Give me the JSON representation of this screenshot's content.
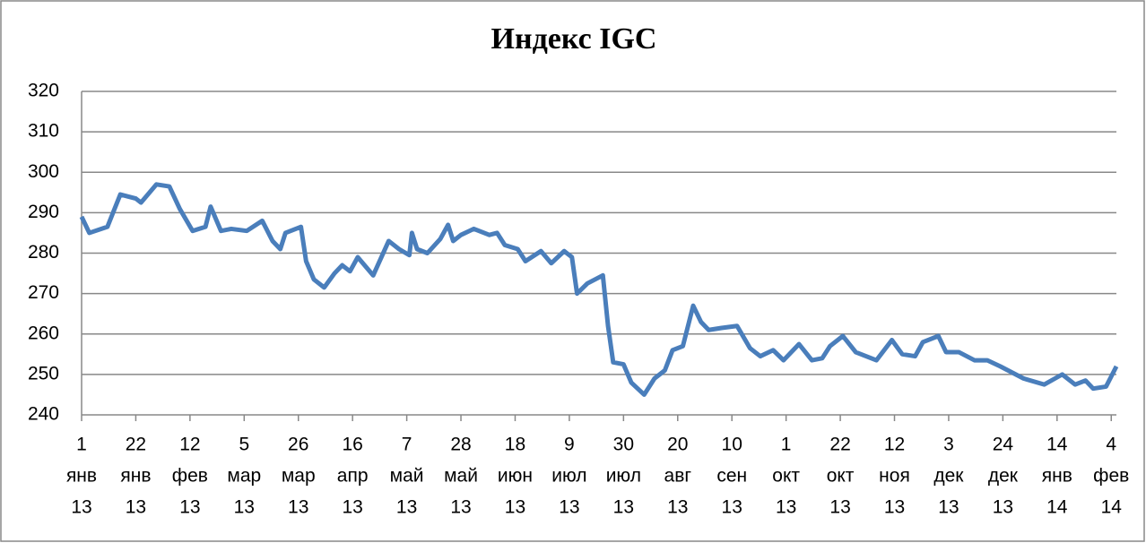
{
  "chart_data": {
    "type": "line",
    "title": "Индекс IGC",
    "color": "#4a7ebb",
    "grid": true,
    "x": [
      "2013-01-01",
      "2013-01-04",
      "2013-01-11",
      "2013-01-16",
      "2013-01-22",
      "2013-01-24",
      "2013-01-30",
      "2013-02-04",
      "2013-02-08",
      "2013-02-13",
      "2013-02-18",
      "2013-02-20",
      "2013-02-24",
      "2013-02-28",
      "2013-03-06",
      "2013-03-12",
      "2013-03-16",
      "2013-03-19",
      "2013-03-21",
      "2013-03-27",
      "2013-03-29",
      "2013-04-01",
      "2013-04-05",
      "2013-04-09",
      "2013-04-12",
      "2013-04-15",
      "2013-04-18",
      "2013-04-24",
      "2013-04-30",
      "2013-05-04",
      "2013-05-08",
      "2013-05-09",
      "2013-05-11",
      "2013-05-15",
      "2013-05-20",
      "2013-05-23",
      "2013-05-25",
      "2013-05-28",
      "2013-06-02",
      "2013-06-08",
      "2013-06-11",
      "2013-06-14",
      "2013-06-19",
      "2013-06-22",
      "2013-06-28",
      "2013-07-02",
      "2013-07-07",
      "2013-07-10",
      "2013-07-12",
      "2013-07-16",
      "2013-07-22",
      "2013-07-24",
      "2013-07-26",
      "2013-07-30",
      "2013-08-02",
      "2013-08-07",
      "2013-08-11",
      "2013-08-15",
      "2013-08-18",
      "2013-08-22",
      "2013-08-26",
      "2013-08-29",
      "2013-09-01",
      "2013-09-06",
      "2013-09-12",
      "2013-09-17",
      "2013-09-21",
      "2013-09-26",
      "2013-09-30",
      "2013-10-06",
      "2013-10-11",
      "2013-10-15",
      "2013-10-18",
      "2013-10-23",
      "2013-10-28",
      "2013-11-01",
      "2013-11-05",
      "2013-11-11",
      "2013-11-15",
      "2013-11-20",
      "2013-11-23",
      "2013-11-29",
      "2013-12-02",
      "2013-12-07",
      "2013-12-13",
      "2013-12-18",
      "2013-12-23",
      "2014-01-01",
      "2014-01-09",
      "2014-01-16",
      "2014-01-21",
      "2014-01-25",
      "2014-01-28",
      "2014-02-02",
      "2014-02-06"
    ],
    "values": [
      289,
      285,
      286.5,
      294.5,
      293.5,
      292.5,
      297,
      296.5,
      291,
      285.5,
      286.5,
      291.5,
      285.5,
      286,
      285.5,
      288,
      283,
      281,
      285,
      286.5,
      278,
      273.5,
      271.5,
      275,
      277,
      275.5,
      279,
      274.5,
      283,
      281,
      279.5,
      285,
      281,
      280,
      283.5,
      287,
      283,
      284.5,
      286,
      284.5,
      285,
      282,
      281,
      278,
      280.5,
      277.5,
      280.5,
      279,
      270,
      272.5,
      274.5,
      262,
      253,
      252.5,
      248,
      245,
      249,
      251,
      256,
      257,
      267,
      263,
      261,
      261.5,
      262,
      256.5,
      254.5,
      256,
      253.5,
      257.5,
      253.5,
      254,
      257,
      259.5,
      255.5,
      254.5,
      253.5,
      258.5,
      255,
      254.5,
      258,
      259.5,
      255.5,
      255.5,
      253.5,
      253.5,
      252,
      249,
      247.5,
      250,
      247.5,
      248.5,
      246.5,
      247,
      252
    ],
    "xlim": [
      "2013-01-01",
      "2014-02-06"
    ],
    "xticks": [
      {
        "value": "2013-01-01",
        "label": [
          "1",
          "янв",
          "13"
        ]
      },
      {
        "value": "2013-01-22",
        "label": [
          "22",
          "янв",
          "13"
        ]
      },
      {
        "value": "2013-02-12",
        "label": [
          "12",
          "фев",
          "13"
        ]
      },
      {
        "value": "2013-03-05",
        "label": [
          "5",
          "мар",
          "13"
        ]
      },
      {
        "value": "2013-03-26",
        "label": [
          "26",
          "мар",
          "13"
        ]
      },
      {
        "value": "2013-04-16",
        "label": [
          "16",
          "апр",
          "13"
        ]
      },
      {
        "value": "2013-05-07",
        "label": [
          "7",
          "май",
          "13"
        ]
      },
      {
        "value": "2013-05-28",
        "label": [
          "28",
          "май",
          "13"
        ]
      },
      {
        "value": "2013-06-18",
        "label": [
          "18",
          "июн",
          "13"
        ]
      },
      {
        "value": "2013-07-09",
        "label": [
          "9",
          "июл",
          "13"
        ]
      },
      {
        "value": "2013-07-30",
        "label": [
          "30",
          "июл",
          "13"
        ]
      },
      {
        "value": "2013-08-20",
        "label": [
          "20",
          "авг",
          "13"
        ]
      },
      {
        "value": "2013-09-10",
        "label": [
          "10",
          "сен",
          "13"
        ]
      },
      {
        "value": "2013-10-01",
        "label": [
          "1",
          "окт",
          "13"
        ]
      },
      {
        "value": "2013-10-22",
        "label": [
          "22",
          "окт",
          "13"
        ]
      },
      {
        "value": "2013-11-12",
        "label": [
          "12",
          "ноя",
          "13"
        ]
      },
      {
        "value": "2013-12-03",
        "label": [
          "3",
          "дек",
          "13"
        ]
      },
      {
        "value": "2013-12-24",
        "label": [
          "24",
          "дек",
          "13"
        ]
      },
      {
        "value": "2014-01-14",
        "label": [
          "14",
          "янв",
          "14"
        ]
      },
      {
        "value": "2014-02-04",
        "label": [
          "4",
          "фев",
          "14"
        ]
      }
    ],
    "ylim": [
      240,
      320
    ],
    "yticks": [
      240,
      250,
      260,
      270,
      280,
      290,
      300,
      310,
      320
    ]
  }
}
